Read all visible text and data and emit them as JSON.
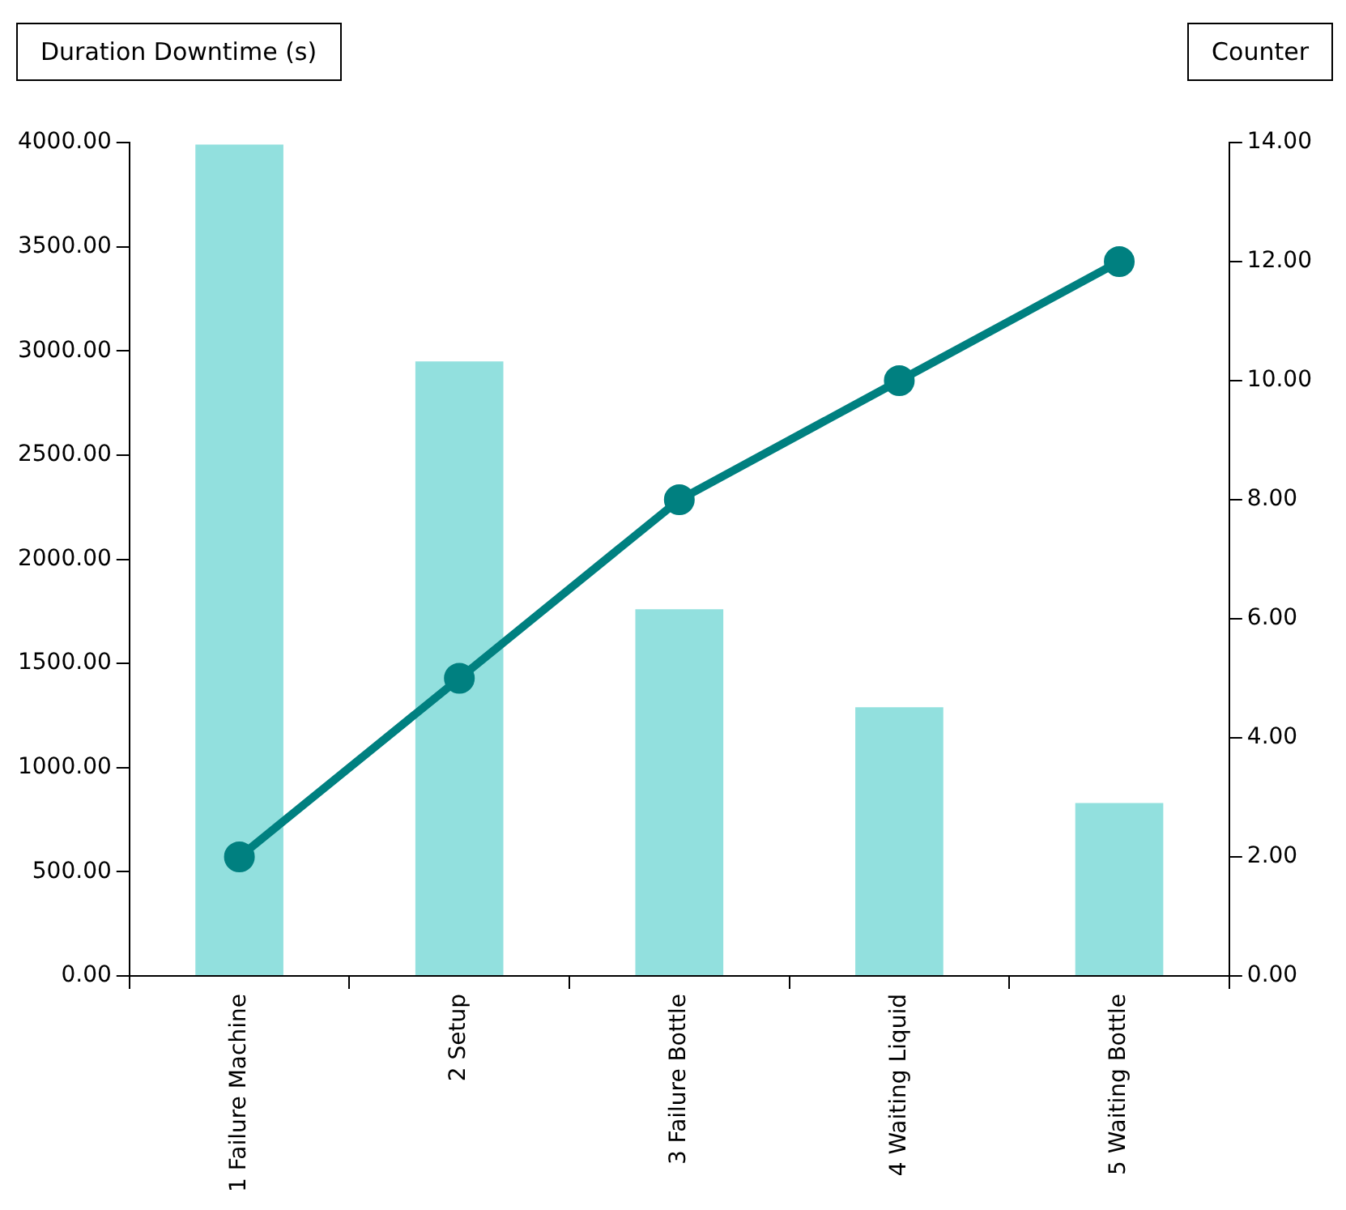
{
  "chart_data": {
    "type": "bar",
    "ylabel": "Duration Downtime (s)",
    "y2label": "Counter",
    "categories": [
      "1 Failure Machine",
      "2 Setup",
      "3 Failure Bottle",
      "4 Waiting Liquid",
      "5 Waiting Bottle"
    ],
    "series": [
      {
        "color": "#92e0de",
        "values": [
          3990,
          2950,
          1760,
          1290,
          830
        ]
      },
      {
        "type": "line",
        "axis": "y2",
        "color": "#008080",
        "values": [
          2,
          5,
          8,
          10,
          12
        ]
      }
    ],
    "ylim": [
      0,
      4000
    ],
    "yticks": [
      {
        "value": 0,
        "label": "0.00"
      },
      {
        "value": 500,
        "label": "500.00"
      },
      {
        "value": 1000,
        "label": "1000.00"
      },
      {
        "value": 1500,
        "label": "1500.00"
      },
      {
        "value": 2000,
        "label": "2000.00"
      },
      {
        "value": 2500,
        "label": "2500.00"
      },
      {
        "value": 3000,
        "label": "3000.00"
      },
      {
        "value": 3500,
        "label": "3500.00"
      },
      {
        "value": 4000,
        "label": "4000.00"
      }
    ],
    "y2lim": [
      0,
      14
    ],
    "y2ticks": [
      {
        "value": 0,
        "label": "0.00"
      },
      {
        "value": 2,
        "label": "2.00"
      },
      {
        "value": 4,
        "label": "4.00"
      },
      {
        "value": 6,
        "label": "6.00"
      },
      {
        "value": 8,
        "label": "8.00"
      },
      {
        "value": 10,
        "label": "10.00"
      },
      {
        "value": 12,
        "label": "12.00"
      },
      {
        "value": 14,
        "label": "14.00"
      }
    ],
    "grid": false,
    "legend": false,
    "marker": "circle",
    "line_style": "solid"
  }
}
